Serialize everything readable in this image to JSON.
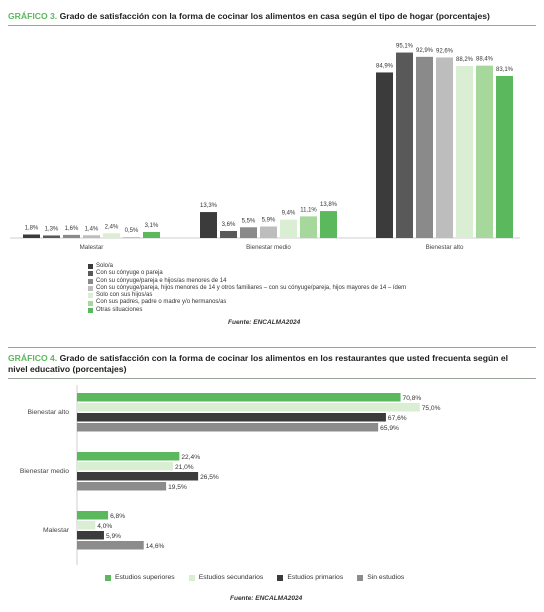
{
  "chart3": {
    "title_num": "GRÁFICO 3.",
    "title_text": "Grado de satisfacción con la forma de cocinar los alimentos en casa según el tipo de hogar (porcentajes)",
    "source": "Fuente: ENCALMA2024"
  },
  "chart4": {
    "title_num": "GRÁFICO 4.",
    "title_text": "Grado de satisfacción con la forma de cocinar los alimentos en los restaurantes que usted frecuenta según el nivel educativo (porcentajes)",
    "source": "Fuente: ENCALMA2024"
  },
  "chart_data": [
    {
      "type": "bar",
      "orientation": "vertical",
      "title": "Grado de satisfacción con la forma de cocinar los alimentos en casa según el tipo de hogar (porcentajes)",
      "categories": [
        "Malestar",
        "Bienestar medio",
        "Bienestar alto"
      ],
      "ylim": [
        0,
        100
      ],
      "grid": false,
      "legend_position": "bottom-left",
      "series": [
        {
          "name": "Solo/a",
          "color": "#3b3b3b",
          "values": [
            1.8,
            13.3,
            84.9
          ],
          "labels": [
            "1,8%",
            "13,3%",
            "84,9%"
          ]
        },
        {
          "name": "Con su cónyuge o pareja",
          "color": "#595959",
          "values": [
            1.3,
            3.6,
            95.1
          ],
          "labels": [
            "1,3%",
            "3,6%",
            "95,1%"
          ]
        },
        {
          "name": "Con su cónyuge/pareja e hijos/as menores de 14",
          "color": "#8a8a8a",
          "values": [
            1.6,
            5.5,
            92.9
          ],
          "labels": [
            "1,6%",
            "5,5%",
            "92,9%"
          ]
        },
        {
          "name": "Con su cónyuge/pareja, hijos menores de 14 y otros familiares – con su cónyuge/pareja, hijos mayores de 14 – ídem",
          "color": "#bdbdbd",
          "values": [
            1.4,
            5.9,
            92.6
          ],
          "labels": [
            "1,4%",
            "5,9%",
            "92,6%"
          ]
        },
        {
          "name": "Solo con sus hijos/as",
          "color": "#d9eed3",
          "values": [
            2.4,
            9.4,
            88.2
          ],
          "labels": [
            "2,4%",
            "9,4%",
            "88,2%"
          ]
        },
        {
          "name": "Con sus padres, padre o madre y/o hermanos/as",
          "color": "#a6d89c",
          "values": [
            0.5,
            11.1,
            88.4
          ],
          "labels": [
            "0,5%",
            "11,1%",
            "88,4%"
          ]
        },
        {
          "name": "Otras situaciones",
          "color": "#5cb85c",
          "values": [
            3.1,
            13.8,
            83.1
          ],
          "labels": [
            "3,1%",
            "13,8%",
            "83,1%"
          ]
        }
      ]
    },
    {
      "type": "bar",
      "orientation": "horizontal",
      "title": "Grado de satisfacción con la forma de cocinar los alimentos en los restaurantes que usted frecuenta según el nivel educativo (porcentajes)",
      "categories": [
        "Bienestar alto",
        "Bienestar medio",
        "Malestar"
      ],
      "xlim": [
        0,
        100
      ],
      "grid": false,
      "legend_position": "bottom",
      "series": [
        {
          "name": "Estudios superiores",
          "color": "#5cb85c",
          "values": [
            70.8,
            22.4,
            6.8
          ],
          "labels": [
            "70,8%",
            "22,4%",
            "6,8%"
          ]
        },
        {
          "name": "Estudios secundarios",
          "color": "#d9eed3",
          "values": [
            75.0,
            21.0,
            4.0
          ],
          "labels": [
            "75,0%",
            "21,0%",
            "4,0%"
          ]
        },
        {
          "name": "Estudios primarios",
          "color": "#3b3b3b",
          "values": [
            67.6,
            26.5,
            5.9
          ],
          "labels": [
            "67,6%",
            "26,5%",
            "5,9%"
          ]
        },
        {
          "name": "Sin estudios",
          "color": "#8c8c8c",
          "values": [
            65.9,
            19.5,
            14.6
          ],
          "labels": [
            "65,9%",
            "19,5%",
            "14,6%"
          ]
        }
      ]
    }
  ]
}
